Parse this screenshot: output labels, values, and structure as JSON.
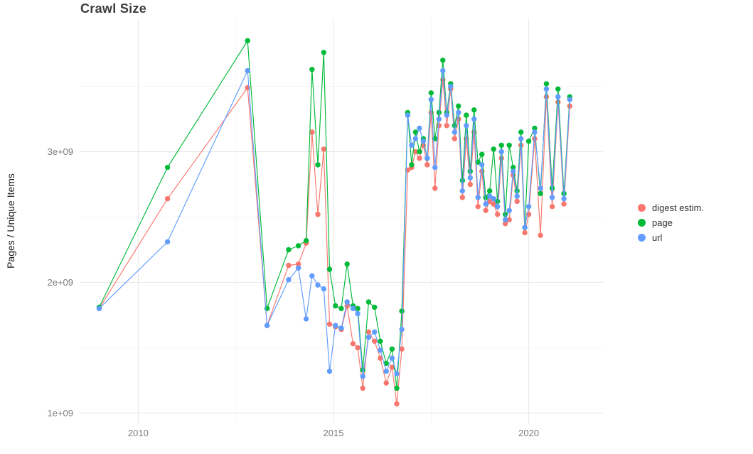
{
  "title": "Crawl Size",
  "ylabel": "Pages / Unique Items",
  "legend": {
    "items": [
      {
        "label": "digest estim.",
        "color": "#F8766D"
      },
      {
        "label": "page",
        "color": "#00BA38"
      },
      {
        "label": "url",
        "color": "#619CFF"
      }
    ]
  },
  "chart_data": {
    "type": "line",
    "title": "Crawl Size",
    "xlabel": "",
    "ylabel": "Pages / Unique Items",
    "unit": "pages (value x 1e9)",
    "grid": "on",
    "legend_position": "right",
    "xlim": [
      2008.5,
      2021.9
    ],
    "ylim": [
      0.92,
      4.02
    ],
    "x_ticks": [
      {
        "v": 2010,
        "label": "2010"
      },
      {
        "v": 2015,
        "label": "2015"
      },
      {
        "v": 2020,
        "label": "2020"
      }
    ],
    "y_ticks": [
      {
        "v": 1,
        "label": "1e+09"
      },
      {
        "v": 2,
        "label": "2e+09"
      },
      {
        "v": 3,
        "label": "3e+09"
      }
    ],
    "x_minor": [
      2012.5,
      2017.5
    ],
    "y_minor": [
      1.5,
      2.5,
      3.5
    ],
    "x": [
      2009.0,
      2010.75,
      2012.8,
      2013.3,
      2013.85,
      2014.1,
      2014.3,
      2014.45,
      2014.6,
      2014.75,
      2014.9,
      2015.05,
      2015.2,
      2015.35,
      2015.5,
      2015.62,
      2015.75,
      2015.9,
      2016.05,
      2016.2,
      2016.35,
      2016.5,
      2016.62,
      2016.75,
      2016.9,
      2017.0,
      2017.1,
      2017.2,
      2017.3,
      2017.4,
      2017.5,
      2017.6,
      2017.7,
      2017.8,
      2017.9,
      2018.0,
      2018.1,
      2018.2,
      2018.3,
      2018.4,
      2018.5,
      2018.6,
      2018.7,
      2018.8,
      2018.9,
      2019.0,
      2019.1,
      2019.2,
      2019.3,
      2019.4,
      2019.5,
      2019.6,
      2019.7,
      2019.8,
      2019.9,
      2020.0,
      2020.15,
      2020.3,
      2020.45,
      2020.6,
      2020.75,
      2020.9,
      2021.05
    ],
    "series": [
      {
        "name": "digest estim.",
        "color": "#F8766D",
        "values": [
          1.8,
          2.64,
          3.49,
          1.67,
          2.13,
          2.14,
          2.3,
          3.15,
          2.52,
          3.02,
          1.68,
          1.66,
          1.64,
          1.82,
          1.53,
          1.5,
          1.19,
          1.62,
          1.55,
          1.42,
          1.23,
          1.35,
          1.07,
          1.49,
          2.86,
          2.88,
          3.0,
          2.95,
          3.05,
          2.9,
          3.3,
          2.72,
          3.2,
          3.55,
          3.2,
          3.48,
          3.1,
          3.25,
          2.65,
          3.1,
          2.75,
          3.15,
          2.58,
          2.85,
          2.55,
          2.62,
          2.6,
          2.52,
          2.95,
          2.45,
          2.48,
          2.82,
          2.62,
          3.05,
          2.38,
          2.52,
          3.1,
          2.36,
          3.42,
          2.58,
          3.38,
          2.6,
          3.35
        ]
      },
      {
        "name": "page",
        "color": "#00BA38",
        "values": [
          1.81,
          2.88,
          3.85,
          1.8,
          2.25,
          2.28,
          2.32,
          3.63,
          2.9,
          3.76,
          2.1,
          1.82,
          1.8,
          2.14,
          1.82,
          1.8,
          1.33,
          1.85,
          1.81,
          1.55,
          1.38,
          1.49,
          1.19,
          1.78,
          3.3,
          2.9,
          3.15,
          3.0,
          3.1,
          2.95,
          3.45,
          3.1,
          3.3,
          3.7,
          3.3,
          3.52,
          3.2,
          3.35,
          2.78,
          3.28,
          2.85,
          3.32,
          2.92,
          2.98,
          2.65,
          2.7,
          3.02,
          2.62,
          3.05,
          2.52,
          3.05,
          2.88,
          2.7,
          3.15,
          2.42,
          3.08,
          3.18,
          2.68,
          3.52,
          2.72,
          3.48,
          2.68,
          3.42
        ]
      },
      {
        "name": "url",
        "color": "#619CFF",
        "values": [
          1.8,
          2.31,
          3.62,
          1.67,
          2.02,
          2.11,
          1.72,
          2.05,
          1.98,
          1.95,
          1.32,
          1.67,
          1.65,
          1.85,
          1.8,
          1.76,
          1.28,
          1.58,
          1.62,
          1.48,
          1.32,
          1.42,
          1.3,
          1.64,
          3.28,
          3.05,
          3.1,
          3.18,
          3.08,
          2.95,
          3.4,
          2.88,
          3.25,
          3.62,
          3.28,
          3.5,
          3.15,
          3.3,
          2.7,
          3.2,
          2.8,
          3.25,
          2.65,
          2.9,
          2.6,
          2.66,
          2.64,
          2.58,
          3.0,
          2.48,
          2.55,
          2.85,
          2.66,
          3.1,
          2.42,
          2.58,
          3.15,
          2.72,
          3.48,
          2.65,
          3.42,
          2.64,
          3.4
        ]
      }
    ]
  },
  "style": {
    "grid_major_color": "#e7e7e7",
    "grid_minor_color": "#f4f4f4",
    "tick_label_color": "#7b7b7b"
  }
}
